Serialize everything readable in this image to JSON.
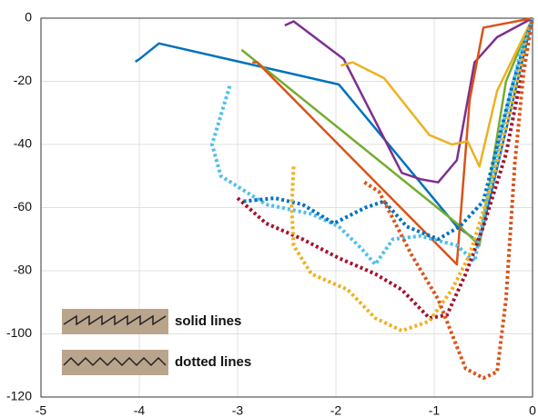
{
  "chart_data": {
    "type": "line",
    "xlim": [
      -5,
      0
    ],
    "ylim": [
      -120,
      0
    ],
    "xticks": [
      -5,
      -4,
      -3,
      -2,
      -1,
      0
    ],
    "yticks": [
      -120,
      -100,
      -80,
      -60,
      -40,
      -20,
      0
    ],
    "grid": true,
    "legend": {
      "position": "lower left",
      "items": [
        {
          "label": "solid lines",
          "style": "solid"
        },
        {
          "label": "dotted lines",
          "style": "dotted"
        }
      ]
    },
    "series": [
      {
        "color": "#0072bd",
        "style": "solid",
        "x": [
          -4.04,
          -4.0,
          -3.8,
          -1.97,
          -0.77,
          -0.54,
          0
        ],
        "values": [
          -13.8,
          -13,
          -8,
          -21,
          -66,
          -71,
          0
        ]
      },
      {
        "color": "#7e2f8e",
        "style": "solid",
        "x": [
          -2.52,
          -2.43,
          -1.92,
          -1.33,
          -1.14,
          -0.96,
          -0.77,
          -0.59,
          -0.36,
          0
        ],
        "values": [
          -2.3,
          -1,
          -13,
          -49,
          -51,
          -52,
          -45,
          -14,
          -6,
          0
        ]
      },
      {
        "color": "#77ac30",
        "style": "solid",
        "x": [
          -2.96,
          -0.77,
          -0.54,
          -0.27,
          0
        ],
        "values": [
          -10,
          -65,
          -72,
          -20,
          0
        ]
      },
      {
        "color": "#d95319",
        "style": "solid",
        "x": [
          -2.85,
          -2.8,
          -0.77,
          -0.64,
          -0.5,
          0
        ],
        "values": [
          -14,
          -14,
          -78,
          -26,
          -3,
          0
        ]
      },
      {
        "color": "#edb120",
        "style": "solid",
        "x": [
          -1.95,
          -1.83,
          -1.51,
          -1.05,
          -0.82,
          -0.66,
          -0.54,
          -0.36,
          0
        ],
        "values": [
          -15,
          -14,
          -19,
          -37,
          -40,
          -39,
          -47,
          -23,
          0
        ]
      },
      {
        "color": "#4dbeee",
        "style": "dotted",
        "x": [
          -3.08,
          -3.26,
          -3.17,
          -2.71,
          -2.25,
          -1.97,
          -1.74,
          -1.6,
          -1.42,
          -1.14,
          -0.77,
          -0.59,
          -0.31,
          -0.13,
          0
        ],
        "values": [
          -21.5,
          -40,
          -50,
          -59,
          -62,
          -66,
          -73,
          -78,
          -70,
          -69,
          -72,
          -77,
          -35,
          -12,
          0
        ]
      },
      {
        "color": "#0072bd",
        "style": "dotted",
        "x": [
          -2.94,
          -2.62,
          -2.34,
          -2.02,
          -1.7,
          -1.51,
          -1.28,
          -0.96,
          -0.74,
          -0.5,
          -0.22,
          0
        ],
        "values": [
          -58,
          -57,
          -59,
          -65,
          -60,
          -58,
          -66,
          -70,
          -66,
          -58,
          -23,
          0
        ]
      },
      {
        "color": "#a2142f",
        "style": "dotted",
        "x": [
          -3.0,
          -2.71,
          -2.34,
          -1.97,
          -1.6,
          -1.33,
          -1.05,
          -0.87,
          -0.68,
          -0.5,
          -0.27,
          0
        ],
        "values": [
          -57,
          -65,
          -70,
          -76,
          -81,
          -86,
          -95,
          -94,
          -81,
          -66,
          -43,
          0
        ]
      },
      {
        "color": "#edb120",
        "style": "dotted",
        "x": [
          -2.43,
          -2.45,
          -2.43,
          -2.25,
          -1.88,
          -1.6,
          -1.33,
          -1.05,
          -0.82,
          -0.64,
          -0.41,
          0
        ],
        "values": [
          -47,
          -60,
          -72,
          -81,
          -86,
          -95,
          -99,
          -96,
          -86,
          -75,
          -52,
          0
        ]
      },
      {
        "color": "#d95319",
        "style": "dotted",
        "x": [
          -1.71,
          -1.56,
          -1.23,
          -0.96,
          -0.77,
          -0.68,
          -0.5,
          -0.36,
          -0.27,
          -0.18,
          -0.09,
          0
        ],
        "values": [
          -52,
          -55,
          -75,
          -89,
          -104,
          -111,
          -114,
          -112,
          -89,
          -46,
          -17,
          0
        ]
      }
    ]
  }
}
